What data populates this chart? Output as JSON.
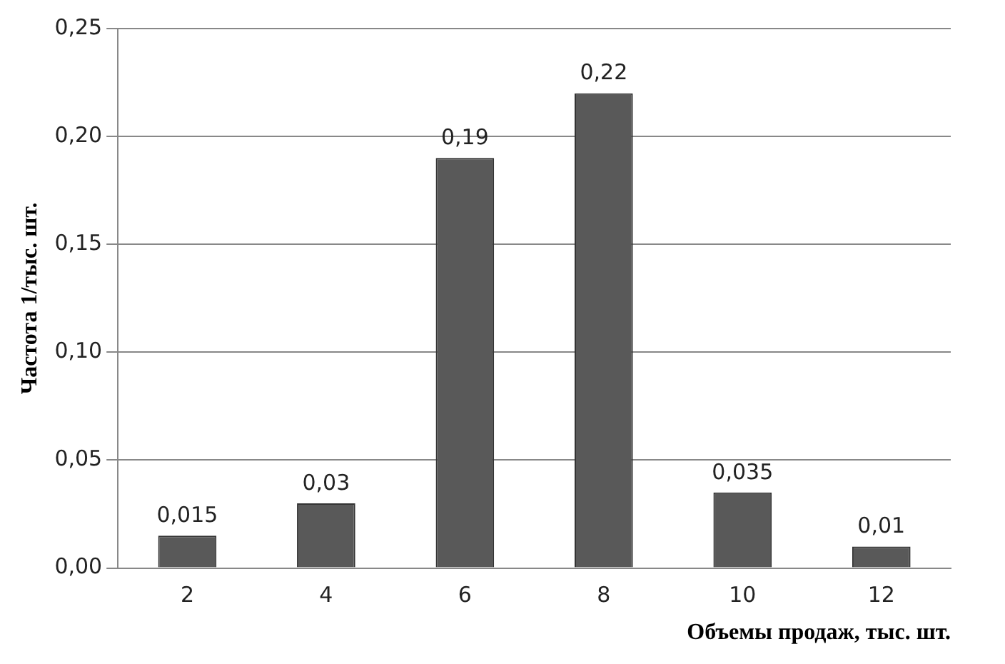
{
  "chart_data": {
    "type": "bar",
    "xlabel": "Объемы продаж, тыс. шт.",
    "ylabel": "Частота 1/тыс. шт.",
    "categories": [
      "2",
      "4",
      "6",
      "8",
      "10",
      "12"
    ],
    "values": [
      0.015,
      0.03,
      0.19,
      0.22,
      0.035,
      0.01
    ],
    "value_labels": [
      "0,015",
      "0,03",
      "0,19",
      "0,22",
      "0,035",
      "0,01"
    ],
    "color": "#595959",
    "ylim": [
      0,
      0.25
    ],
    "yticks": [
      {
        "value": 0,
        "label": "0,00"
      },
      {
        "value": 0.05,
        "label": "0,05"
      },
      {
        "value": 0.1,
        "label": "0,10"
      },
      {
        "value": 0.15,
        "label": "0,15"
      },
      {
        "value": 0.2,
        "label": "0,20"
      },
      {
        "value": 0.25,
        "label": "0,25"
      }
    ],
    "grid": "y"
  }
}
